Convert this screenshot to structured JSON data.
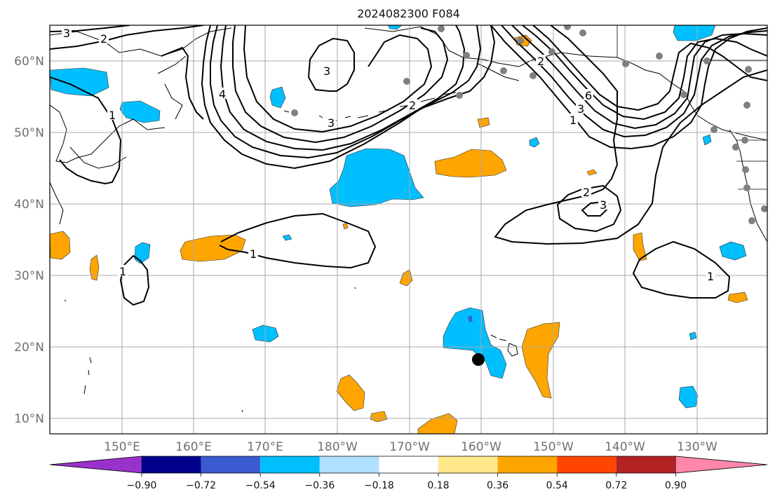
{
  "title": "2024082300 F084",
  "map": {
    "lat_labels": [
      "60°N",
      "50°N",
      "40°N",
      "30°N",
      "20°N",
      "10°N"
    ],
    "lon_labels": [
      "150°E",
      "160°E",
      "170°E",
      "180°W",
      "170°W",
      "160°W",
      "150°W",
      "140°W",
      "130°W"
    ],
    "contour_labels": [
      "3",
      "2",
      "1",
      "4",
      "3",
      "2",
      "3",
      "2",
      "1",
      "6",
      "3",
      "2",
      "3",
      "1",
      "1",
      "1"
    ],
    "colors": {
      "positive_fill": "#ffa500",
      "negative_fill": "#00bfff",
      "deep_negative": "#3a5bcf",
      "contour": "#000000",
      "station": "#808080",
      "storm_marker": "#000000"
    }
  },
  "colorbar": {
    "ticks": [
      "−0.90",
      "−0.72",
      "−0.54",
      "−0.36",
      "−0.18",
      "0.18",
      "0.36",
      "0.54",
      "0.72",
      "0.90"
    ],
    "colors": [
      "#9932cc",
      "#00008b",
      "#3a5bcf",
      "#00bfff",
      "#b0e0ff",
      "#ffffff",
      "#ffe88a",
      "#ffa500",
      "#ff4500",
      "#b22222",
      "#ff88aa"
    ]
  }
}
